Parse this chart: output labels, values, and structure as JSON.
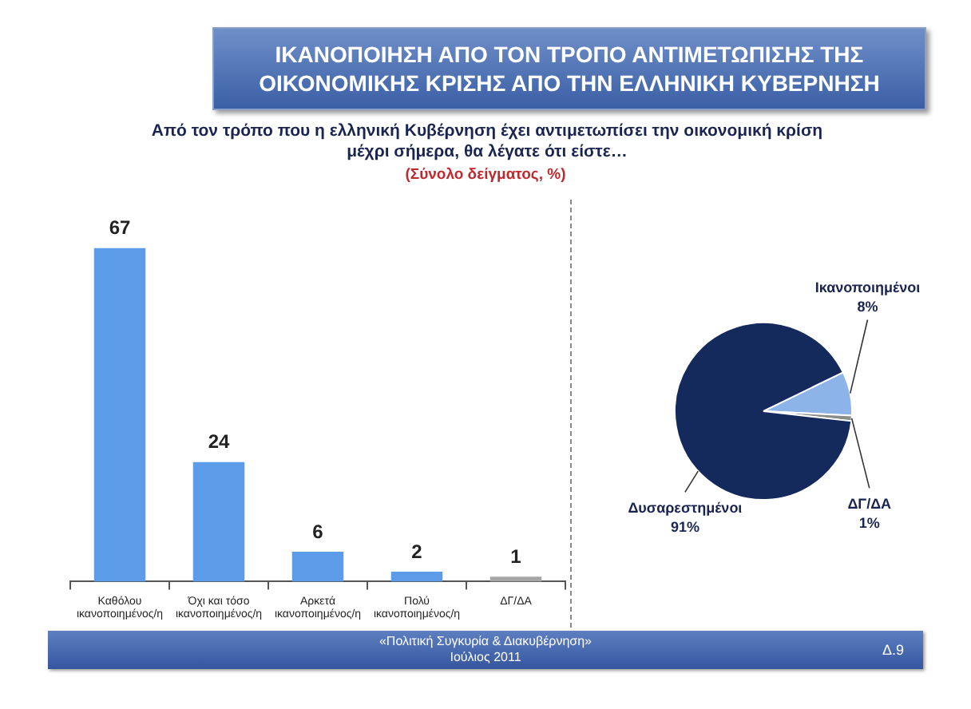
{
  "chart_data": [
    {
      "type": "bar",
      "title": "ΙΚΑΝΟΠΟΙΗΣΗ ΑΠΟ ΤΟΝ ΤΡΟΠΟ ΑΝΤΙΜΕΤΩΠΙΣΗΣ ΤΗΣ ΟΙΚΟΝΟΜΙΚΗΣ ΚΡΙΣΗΣ ΑΠΟ ΤΗΝ ΕΛΛΗΝΙΚΗ ΚΥΒΕΡΝΗΣΗ",
      "subtitle": "Από τον τρόπο που η ελληνική Κυβέρνηση έχει αντιμετωπίσει την οικονομική κρίση μέχρι σήμερα, θα λέγατε ότι είστε…",
      "annotations": [
        "(Σύνολο δείγματος, %)",
        "«Πολιτική Συγκυρία & Διακυβέρνηση»",
        "Ιούλιος 2011",
        "Δ.9"
      ],
      "categories": [
        "Καθόλου ικανοποιημένος/η",
        "Όχι και τόσο ικανοποιημένος/η",
        "Αρκετά ικανοποιημένος/η",
        "Πολύ ικανοποιημένος/η",
        "ΔΓ/ΔΑ"
      ],
      "values": [
        67,
        24,
        6,
        2,
        1
      ],
      "colors": [
        "#5b9be8",
        "#5b9be8",
        "#5b9be8",
        "#5b9be8",
        "#a6a6a6"
      ],
      "data_labels": true
    },
    {
      "type": "pie",
      "categories": [
        "Ικανοποιημένοι",
        "ΔΓ/ΔΑ",
        "Δυσαρεστημένοι"
      ],
      "values": [
        8,
        1,
        91
      ],
      "colors": [
        "#8db4e8",
        "#8c8c8c",
        "#14295c"
      ],
      "value_labels": [
        "8%",
        "1%",
        "91%"
      ]
    }
  ]
}
